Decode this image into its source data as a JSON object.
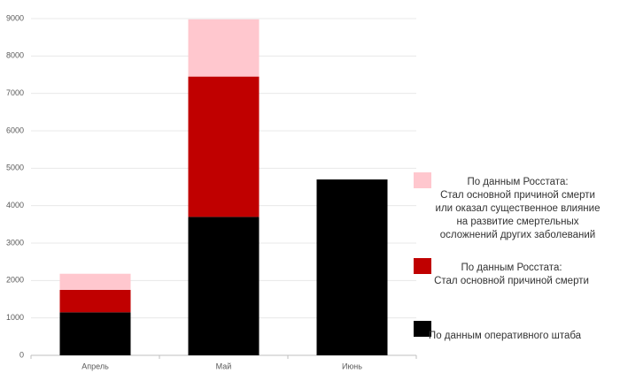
{
  "chart_data": {
    "type": "stacked-bar",
    "categories": [
      "Апрель",
      "Май",
      "Июнь"
    ],
    "series": [
      {
        "name": "По данным оперативного штаба",
        "color": "#000000",
        "values": [
          1150,
          3700,
          4700
        ]
      },
      {
        "name": "По данным Росстата:\nСтал основной причиной смерти",
        "color": "#c00000",
        "values": [
          600,
          3750,
          null
        ]
      },
      {
        "name": "По данным Росстата:\nСтал основной причиной смерти или оказал существенное влияние на развитие смертельных осложнений других заболеваний",
        "color": "#ffc7ce",
        "values": [
          430,
          1530,
          null
        ]
      }
    ],
    "ylim": [
      0,
      9000
    ],
    "yticks": [
      0,
      1000,
      2000,
      3000,
      4000,
      5000,
      6000,
      7000,
      8000,
      9000
    ],
    "grid": true
  }
}
